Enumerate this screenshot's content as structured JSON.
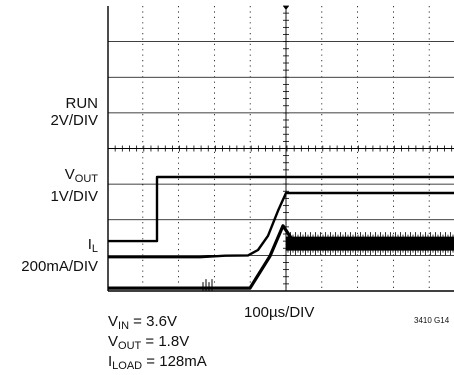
{
  "chart_data": {
    "type": "line",
    "title": "",
    "xlabel": "100µs/DIV",
    "x_unit": "µs",
    "x_divisions": 8,
    "y_divisions": 8,
    "grid": true,
    "graph_id": "3410 G14",
    "channels": [
      {
        "name": "RUN",
        "scale": "2V/DIV",
        "ground_div": 1.4,
        "points": [
          [
            0,
            0
          ],
          [
            157,
            0
          ],
          [
            157,
            3.6
          ],
          [
            454,
            3.6
          ]
        ]
      },
      {
        "name": "VOUT",
        "name_main": "V",
        "name_sub": "OUT",
        "scale": "1V/DIV",
        "ground_div": 0.95,
        "points": [
          [
            0,
            0
          ],
          [
            200,
            0
          ],
          [
            225,
            0.04
          ],
          [
            248,
            0.05
          ],
          [
            258,
            0.2
          ],
          [
            268,
            0.6
          ],
          [
            278,
            1.3
          ],
          [
            286,
            1.8
          ],
          [
            454,
            1.8
          ]
        ]
      },
      {
        "name": "IL",
        "name_main": "I",
        "name_sub": "L",
        "scale": "200mA/DIV",
        "ground_div": 0.08,
        "points": [
          [
            0,
            0
          ],
          [
            250,
            0
          ],
          [
            270,
            0.18
          ],
          [
            283,
            0.35
          ],
          [
            295,
            0.25
          ],
          [
            454,
            0.25
          ]
        ]
      }
    ],
    "conditions": [
      {
        "main": "V",
        "sub": "IN",
        "rest": " = 3.6V"
      },
      {
        "main": "V",
        "sub": "OUT",
        "rest": " = 1.8V"
      },
      {
        "main": "I",
        "sub": "LOAD",
        "rest": " = 128mA"
      }
    ]
  }
}
